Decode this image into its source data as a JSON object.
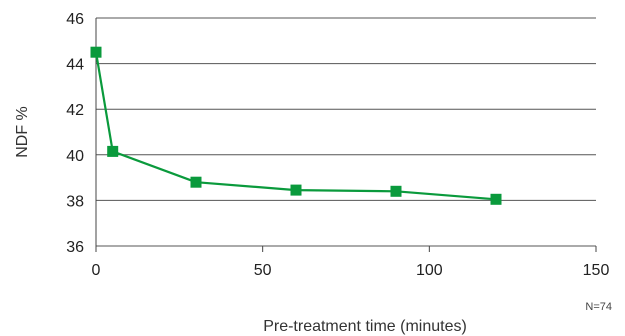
{
  "chart_data": {
    "type": "line",
    "title": "",
    "xlabel": "Pre-treatment time (minutes)",
    "ylabel": "NDF %",
    "xlim": [
      0,
      150
    ],
    "ylim": [
      36,
      46
    ],
    "x_ticks": [
      0,
      50,
      100,
      150
    ],
    "y_ticks": [
      36,
      38,
      40,
      42,
      44,
      46
    ],
    "grid": "horizontal",
    "annotation": "N=74",
    "series": [
      {
        "color": "#0a9a3c",
        "marker": "square",
        "x": [
          0,
          5,
          30,
          60,
          90,
          120
        ],
        "y": [
          44.5,
          40.15,
          38.8,
          38.45,
          38.4,
          38.05
        ]
      }
    ]
  }
}
